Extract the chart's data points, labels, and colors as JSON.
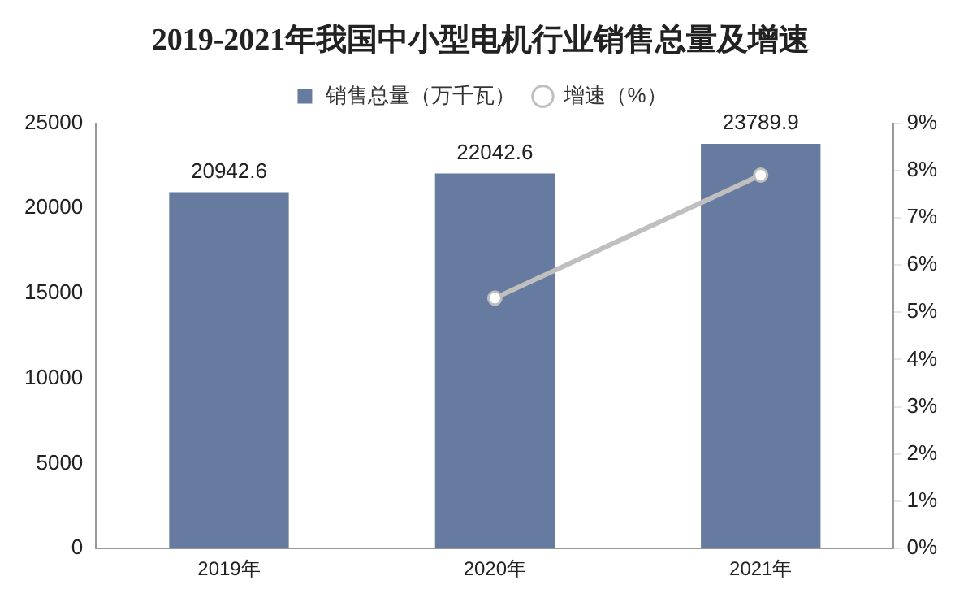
{
  "chart_data": {
    "type": "bar",
    "title": "2019-2021年我国中小型电机行业销售总量及增速",
    "categories": [
      "2019年",
      "2020年",
      "2021年"
    ],
    "series": [
      {
        "name": "销售总量（万千瓦）",
        "color": "#677ba0",
        "values": [
          20942.6,
          22042.6,
          23789.9
        ],
        "value_labels": [
          "20942.6",
          "22042.6",
          "23789.9"
        ]
      },
      {
        "name": "增速（%）",
        "type": "line",
        "axis": "y2",
        "color": "#bfbfbf",
        "marker": "circle",
        "values": [
          null,
          5.3,
          7.9
        ]
      }
    ],
    "ylim": [
      0,
      25000
    ],
    "yticks": [
      0,
      5000,
      10000,
      15000,
      20000,
      25000
    ],
    "y2lim": [
      0,
      9
    ],
    "y2ticks": [
      {
        "value": 0,
        "label": "0%"
      },
      {
        "value": 1,
        "label": "1%"
      },
      {
        "value": 2,
        "label": "2%"
      },
      {
        "value": 3,
        "label": "3%"
      },
      {
        "value": 4,
        "label": "4%"
      },
      {
        "value": 5,
        "label": "5%"
      },
      {
        "value": 6,
        "label": "6%"
      },
      {
        "value": 7,
        "label": "7%"
      },
      {
        "value": 8,
        "label": "8%"
      },
      {
        "value": 9,
        "label": "9%"
      }
    ],
    "grid": false,
    "legend": "top"
  }
}
